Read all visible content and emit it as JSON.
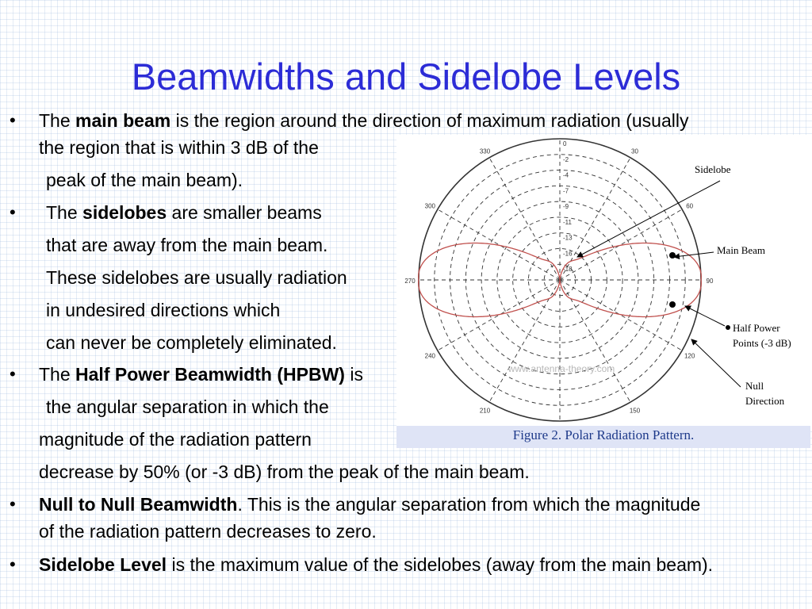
{
  "title": "Beamwidths and Sidelobe Levels",
  "bullets": {
    "b1": {
      "pre": "The ",
      "bold": "main beam",
      "post": " is the region around the direction of maximum radiation (usually",
      "line2": "the region that is within 3 dB of the",
      "line3": "peak of the main beam)."
    },
    "b2": {
      "pre": "The ",
      "bold": "sidelobes",
      "post": " are smaller beams",
      "line2": "that are away from the main beam.",
      "line3": "These sidelobes are usually radiation",
      "line4": "in undesired directions which",
      "line5": "can never be completely eliminated."
    },
    "b3": {
      "pre": "The ",
      "bold": "Half Power Beamwidth (HPBW)",
      "post": " is",
      "line2": "the angular separation in which the",
      "line3": "magnitude of the radiation pattern",
      "line4": "decrease by 50% (or -3 dB) from the peak of the main beam."
    },
    "b4": {
      "bold": "Null to Null Beamwidth",
      "post": ". This is the angular separation from which the magnitude",
      "line2": "of the radiation pattern decreases to zero."
    },
    "b5": {
      "bold": "Sidelobe Level",
      "post": " is the maximum value of the sidelobes (away from the main beam)."
    }
  },
  "figure": {
    "caption": "Figure 2. Polar Radiation Pattern.",
    "watermark": "www.antenna-theory.com",
    "angle_labels": [
      "0",
      "30",
      "60",
      "90",
      "120",
      "150",
      "180",
      "210",
      "240",
      "270",
      "300",
      "330"
    ],
    "radial_labels": [
      "0",
      "-2",
      "-4",
      "-7",
      "-9",
      "-11",
      "-13",
      "-16",
      "-18"
    ],
    "annotations": {
      "sidelobe": "Sidelobe",
      "main_beam": "Main Beam",
      "half_power_1": "Half Power",
      "half_power_2": "Points (-3 dB)",
      "null_1": "Null",
      "null_2": "Direction"
    },
    "colors": {
      "pattern": "#c0504d",
      "grid": "#333333",
      "annotation": "#000000"
    }
  }
}
